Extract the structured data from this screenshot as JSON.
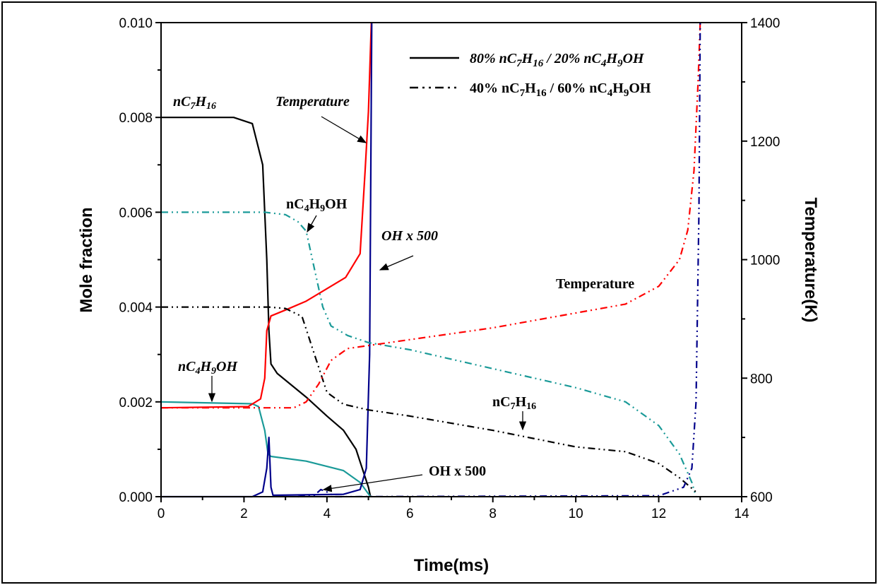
{
  "chart_data": {
    "type": "line",
    "xlabel": "Time(ms)",
    "ylabel": "Mole fraction",
    "y2label": "Temperature(K)",
    "xlim": [
      0,
      14
    ],
    "ylim": [
      0,
      0.01
    ],
    "y2lim": [
      600,
      1400
    ],
    "xticks": [
      "0",
      "2",
      "4",
      "6",
      "8",
      "10",
      "12",
      "14"
    ],
    "yticks": [
      "0.000",
      "0.002",
      "0.004",
      "0.006",
      "0.008",
      "0.010"
    ],
    "y2ticks": [
      "600",
      "800",
      "1000",
      "1200",
      "1400"
    ],
    "grid": false,
    "legend_position": "top-right",
    "legend": [
      {
        "label": "80% nC7H16 / 20% nC4H9OH",
        "style": "solid"
      },
      {
        "label": "40% nC7H16 / 60% nC4H9OH",
        "style": "dash-dot-dot"
      }
    ],
    "series": [
      {
        "mixture": "80% nC7H16 / 20% nC4H9OH",
        "species": "nC7H16",
        "axis": "left",
        "color": "#000000",
        "style": "solid",
        "x": [
          0,
          1.75,
          2.2,
          2.45,
          2.55,
          2.6,
          2.65,
          2.8,
          3.5,
          4.0,
          4.4,
          4.7,
          5.0,
          5.05
        ],
        "y": [
          0.008,
          0.008,
          0.00787,
          0.007,
          0.005,
          0.0035,
          0.0028,
          0.0026,
          0.0021,
          0.0017,
          0.0014,
          0.001,
          0.0002,
          0
        ]
      },
      {
        "mixture": "80% nC7H16 / 20% nC4H9OH",
        "species": "nC4H9OH",
        "axis": "left",
        "color": "#1a9a98",
        "style": "solid",
        "x": [
          0,
          2.2,
          2.35,
          2.5,
          2.58,
          2.65,
          3.5,
          4.4,
          4.8,
          5.05
        ],
        "y": [
          0.002,
          0.00196,
          0.0019,
          0.0014,
          0.0009,
          0.00085,
          0.00075,
          0.00055,
          0.0003,
          0
        ]
      },
      {
        "mixture": "80% nC7H16 / 20% nC4H9OH",
        "species": "Temperature",
        "axis": "right",
        "color": "#ff0000",
        "style": "solid",
        "x": [
          0,
          2.1,
          2.4,
          2.5,
          2.55,
          2.65,
          3.0,
          3.5,
          4.45,
          4.8,
          4.92,
          5.0,
          5.07
        ],
        "y": [
          750,
          752,
          765,
          800,
          880,
          905,
          915,
          930,
          970,
          1010,
          1150,
          1250,
          1400
        ]
      },
      {
        "mixture": "80% nC7H16 / 20% nC4H9OH",
        "species": "OH x 500",
        "axis": "left",
        "color": "#00008b",
        "style": "solid",
        "x": [
          0,
          2.2,
          2.45,
          2.55,
          2.6,
          2.65,
          2.7,
          4.4,
          4.8,
          4.95,
          5.03,
          5.08
        ],
        "y": [
          0,
          0,
          0.0001,
          0.0006,
          0.00125,
          0.0002,
          3e-05,
          5e-05,
          0.00015,
          0.0006,
          0.003,
          0.01
        ]
      },
      {
        "mixture": "40% nC7H16 / 60% nC4H9OH",
        "species": "nC4H9OH",
        "axis": "left",
        "color": "#1a9a98",
        "style": "dash-dot-dot",
        "x": [
          0,
          2.5,
          3.0,
          3.3,
          3.5,
          3.7,
          3.9,
          4.1,
          4.5,
          5.0,
          6,
          8,
          10,
          11.2,
          12,
          12.5,
          12.8,
          12.9
        ],
        "y": [
          0.006,
          0.006,
          0.00595,
          0.0058,
          0.0056,
          0.0048,
          0.004,
          0.0036,
          0.0034,
          0.00325,
          0.0031,
          0.0027,
          0.0023,
          0.002,
          0.0015,
          0.0009,
          0.0003,
          0
        ]
      },
      {
        "mixture": "40% nC7H16 / 60% nC4H9OH",
        "species": "nC7H16",
        "axis": "left",
        "color": "#000000",
        "style": "dash-dot-dot",
        "x": [
          0,
          2.6,
          3.0,
          3.4,
          3.7,
          4.0,
          4.4,
          5.0,
          6,
          8,
          10,
          11.2,
          12,
          12.5,
          12.9
        ],
        "y": [
          0.004,
          0.004,
          0.00397,
          0.0038,
          0.003,
          0.0022,
          0.00195,
          0.00183,
          0.0017,
          0.0014,
          0.00105,
          0.00095,
          0.0007,
          0.0004,
          0.0001
        ]
      },
      {
        "mixture": "40% nC7H16 / 60% nC4H9OH",
        "species": "Temperature",
        "axis": "right",
        "color": "#ff0000",
        "style": "dash-dot-dot",
        "x": [
          0,
          3.2,
          3.5,
          3.8,
          4.1,
          4.5,
          5,
          6,
          8,
          10,
          11.2,
          12,
          12.5,
          12.7,
          12.85,
          12.95,
          13
        ],
        "y": [
          750,
          750,
          760,
          790,
          830,
          850,
          855,
          865,
          885,
          910,
          925,
          955,
          1000,
          1050,
          1150,
          1300,
          1400
        ]
      },
      {
        "mixture": "40% nC7H16 / 60% nC4H9OH",
        "species": "OH x 500",
        "axis": "left",
        "color": "#00008b",
        "style": "dash-dot-dot",
        "x": [
          3.3,
          3.7,
          3.85,
          4.0,
          4.2,
          12,
          12.6,
          12.8,
          12.9,
          12.97,
          13
        ],
        "y": [
          0,
          3e-05,
          0.00015,
          0.0001,
          0,
          2e-05,
          0.0002,
          0.0006,
          0.002,
          0.006,
          0.01
        ]
      }
    ],
    "annotations": [
      {
        "text": "nC7H16",
        "italic": true
      },
      {
        "text": "Temperature",
        "italic": true
      },
      {
        "text": "nC4H9OH",
        "italic": false
      },
      {
        "text": "OH x 500",
        "italic": true
      },
      {
        "text": "Temperature",
        "italic": false
      },
      {
        "text": "nC4H9OH",
        "italic": true
      },
      {
        "text": "nC7H16",
        "italic": false
      },
      {
        "text": "OH x 500",
        "italic": false
      }
    ]
  }
}
